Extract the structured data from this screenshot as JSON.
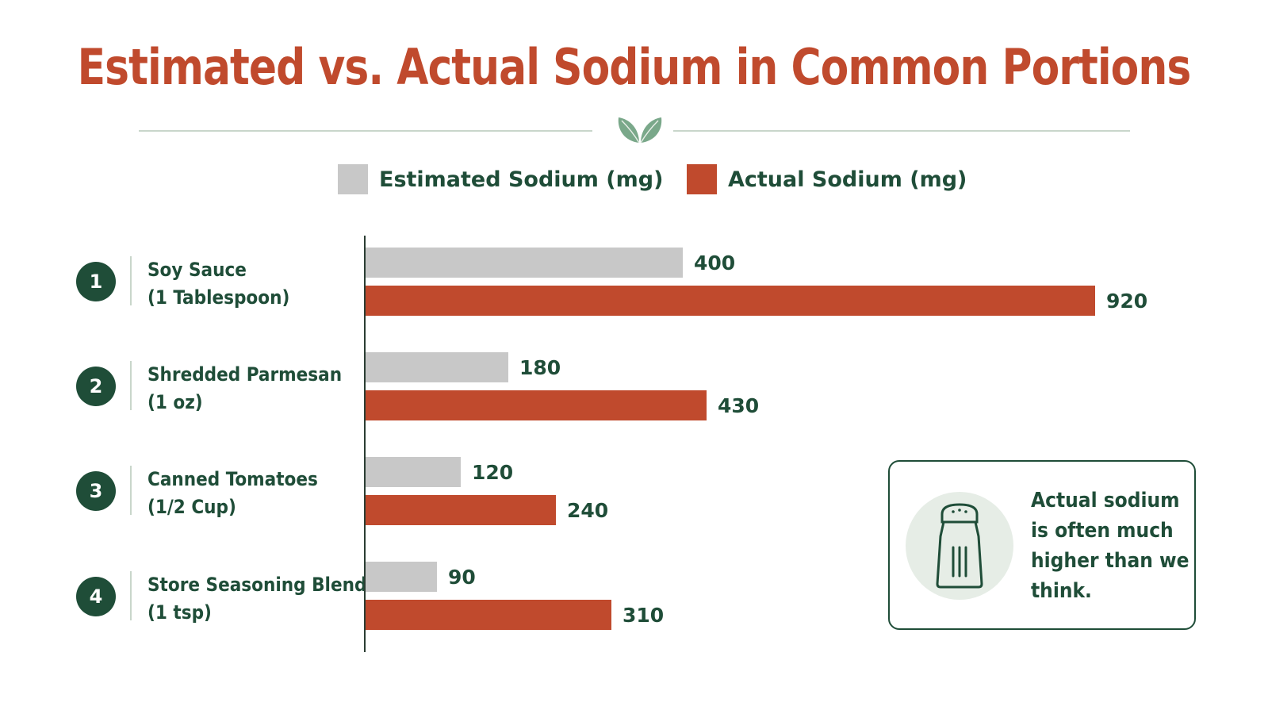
{
  "colors": {
    "accent": "#c04a2d",
    "estimated": "#c8c8c8",
    "actual": "#c04a2d",
    "dark_green": "#1f4d38",
    "leaf_green": "#7aa88a"
  },
  "icons": {
    "divider": "leaf-icon",
    "callout": "salt-shaker-icon"
  },
  "callout": {
    "text": "Actual sodium is often much higher than we think."
  },
  "chart_data": {
    "type": "bar",
    "orientation": "horizontal",
    "title": "Estimated vs. Actual Sodium in Common Portions",
    "legend_position": "top",
    "grid": false,
    "xlim": [
      0,
      1000
    ],
    "categories": [
      {
        "number": "1",
        "line1": "Soy Sauce",
        "line2": "(1 Tablespoon)"
      },
      {
        "number": "2",
        "line1": "Shredded Parmesan",
        "line2": "(1 oz)"
      },
      {
        "number": "3",
        "line1": "Canned Tomatoes",
        "line2": "(1/2 Cup)"
      },
      {
        "number": "4",
        "line1": "Store Seasoning Blend",
        "line2": "(1 tsp)"
      }
    ],
    "series": [
      {
        "name": "Estimated Sodium (mg)",
        "values": [
          400,
          180,
          120,
          90
        ]
      },
      {
        "name": "Actual Sodium (mg)",
        "values": [
          920,
          430,
          240,
          310
        ]
      }
    ]
  }
}
